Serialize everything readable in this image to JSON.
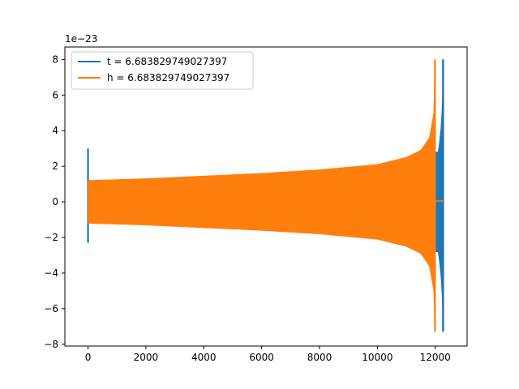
{
  "chart_data": {
    "type": "line",
    "title": "",
    "xlabel": "",
    "ylabel": "",
    "y_offset_label": "1e−23",
    "xlim": [
      -800,
      13100
    ],
    "ylim": [
      -8.1,
      8.7
    ],
    "x_ticks": [
      0,
      2000,
      4000,
      6000,
      8000,
      10000,
      12000
    ],
    "x_tick_labels": [
      "0",
      "2000",
      "4000",
      "6000",
      "8000",
      "10000",
      "12000"
    ],
    "y_ticks": [
      -8,
      -6,
      -4,
      -2,
      0,
      2,
      4,
      6,
      8
    ],
    "y_tick_labels": [
      "−8",
      "−6",
      "−4",
      "−2",
      "0",
      "2",
      "4",
      "6",
      "8"
    ],
    "grid": false,
    "legend_position": "upper-left",
    "series": [
      {
        "name": "t = 6.683829749027397",
        "color": "#1f77b4",
        "x": [
          0,
          0,
          0,
          12100,
          12150,
          12200,
          12230,
          12260,
          12270,
          12270
        ],
        "upper": [
          3.0,
          1.2,
          1.2,
          2.8,
          3.4,
          4.2,
          5.0,
          6.2,
          8.0,
          8.0
        ],
        "lower": [
          -2.3,
          -1.2,
          -1.2,
          -2.8,
          -3.4,
          -4.2,
          -5.0,
          -6.2,
          -7.3,
          -7.3
        ],
        "initial_spike": {
          "x": 0,
          "max": 3.0,
          "min": -2.3
        },
        "final_spike": {
          "x": 12270,
          "max": 8.0,
          "min": -7.3
        }
      },
      {
        "name": "h = 6.683829749027397",
        "color": "#ff7f0e",
        "x": [
          0,
          2000,
          4000,
          6000,
          8000,
          10000,
          11000,
          11500,
          11800,
          11950,
          11990
        ],
        "upper": [
          1.2,
          1.3,
          1.45,
          1.6,
          1.8,
          2.1,
          2.5,
          2.9,
          3.6,
          5.0,
          8.0
        ],
        "lower": [
          -1.2,
          -1.3,
          -1.45,
          -1.6,
          -1.8,
          -2.1,
          -2.5,
          -2.9,
          -3.6,
          -5.0,
          -7.3
        ],
        "tail": {
          "x_start": 11990,
          "x_end": 12270,
          "value": 0.05
        },
        "final_spike": {
          "x": 11990,
          "max": 8.0,
          "min": -7.3
        }
      }
    ]
  }
}
